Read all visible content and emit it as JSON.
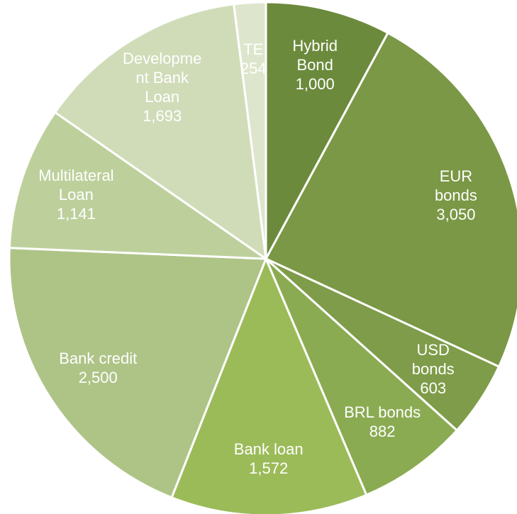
{
  "chart_data": {
    "type": "pie",
    "categories": [
      "Hybrid Bond",
      "EUR bonds",
      "USD bonds",
      "BRL bonds",
      "Bank loan",
      "Bank credit",
      "Multilateral Loan",
      "Development Bank Loan",
      "TE"
    ],
    "values": [
      1000,
      3050,
      603,
      882,
      1572,
      2500,
      1141,
      1693,
      254
    ],
    "value_labels": [
      "1,000",
      "3,050",
      "603",
      "882",
      "1,572",
      "2,500",
      "1,141",
      "1,693",
      "254"
    ],
    "colors": [
      "#6b8a3c",
      "#7a9845",
      "#7e9c49",
      "#8aab52",
      "#9bbb59",
      "#aec487",
      "#bdd09c",
      "#d0dcb8",
      "#dde6cc"
    ]
  }
}
